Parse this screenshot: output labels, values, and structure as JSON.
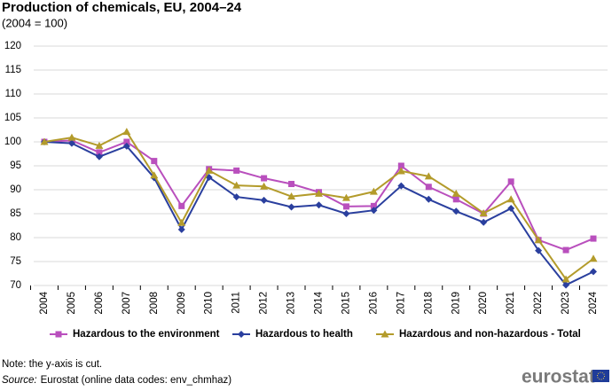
{
  "chart_data": {
    "type": "line",
    "title": "Production of chemicals, EU, 2004–24",
    "subtitle": "(2004 = 100)",
    "categories": [
      "2004",
      "2005",
      "2006",
      "2007",
      "2008",
      "2009",
      "2010",
      "2011",
      "2012",
      "2013",
      "2014",
      "2015",
      "2016",
      "2017",
      "2018",
      "2019",
      "2020",
      "2021",
      "2022",
      "2023",
      "2024"
    ],
    "series": [
      {
        "name": "Hazardous to the environment",
        "color": "#b94fbd",
        "marker": "square",
        "values": [
          100,
          100.3,
          97.8,
          100,
          96,
          86.6,
          94.3,
          94,
          92.4,
          91.2,
          89.5,
          86.5,
          86.6,
          95,
          90.6,
          88,
          85,
          91.7,
          79.5,
          77.4,
          79.8
        ]
      },
      {
        "name": "Hazardous to health",
        "color": "#2a3f9e",
        "marker": "diamond",
        "values": [
          100,
          99.7,
          96.9,
          99.1,
          92.5,
          81.7,
          92.6,
          88.5,
          87.8,
          86.4,
          86.8,
          85,
          85.7,
          90.8,
          88,
          85.5,
          83.2,
          86.1,
          77.3,
          70.1,
          72.9
        ]
      },
      {
        "name": "Hazardous and non-hazardous - Total",
        "color": "#b39b2b",
        "marker": "triangle",
        "values": [
          100,
          100.9,
          99.2,
          102.1,
          93,
          83.1,
          94,
          90.9,
          90.7,
          88.6,
          89.2,
          88.3,
          89.6,
          93.9,
          92.8,
          89.2,
          85.1,
          88,
          79.5,
          71.3,
          75.6
        ]
      }
    ],
    "ylim": [
      70,
      120
    ],
    "yticks": [
      70,
      75,
      80,
      85,
      90,
      95,
      100,
      105,
      110,
      115,
      120
    ],
    "grid": true,
    "legend": "bottom",
    "note": "Note: the y-axis is cut.",
    "source_label": "Source:",
    "source_text": "Eurostat (online data codes: env_chmhaz)",
    "logo": "eurostat"
  }
}
